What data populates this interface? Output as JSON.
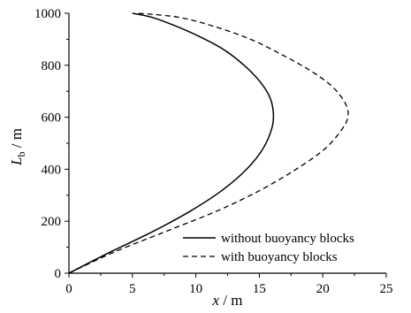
{
  "chart_data": {
    "type": "line",
    "xlabel": {
      "var": "x",
      "unit": " / m"
    },
    "ylabel": {
      "var": "L",
      "sub": "b",
      "unit": " / m"
    },
    "xlim": [
      0,
      25
    ],
    "ylim": [
      0,
      1000
    ],
    "x_ticks": [
      0,
      5,
      10,
      15,
      20,
      25
    ],
    "y_ticks": [
      0,
      200,
      400,
      600,
      800,
      1000
    ],
    "grid": false,
    "legend_position": "bottom-right",
    "series": [
      {
        "name": "without buoyancy blocks",
        "style": "solid",
        "color": "#000000",
        "points": [
          [
            0,
            0
          ],
          [
            3.2,
            80
          ],
          [
            6.6,
            160
          ],
          [
            9.6,
            240
          ],
          [
            12.1,
            320
          ],
          [
            14.0,
            400
          ],
          [
            15.3,
            480
          ],
          [
            16.0,
            560
          ],
          [
            16.1,
            620
          ],
          [
            15.8,
            680
          ],
          [
            15.0,
            740
          ],
          [
            13.8,
            800
          ],
          [
            12.2,
            860
          ],
          [
            10.3,
            910
          ],
          [
            8.2,
            955
          ],
          [
            6.5,
            985
          ],
          [
            5.0,
            1000
          ]
        ]
      },
      {
        "name": "with buoyancy blocks",
        "style": "dashed",
        "color": "#000000",
        "points": [
          [
            0,
            0
          ],
          [
            3.5,
            80
          ],
          [
            7.6,
            160
          ],
          [
            11.7,
            240
          ],
          [
            15.1,
            320
          ],
          [
            17.9,
            400
          ],
          [
            20.2,
            480
          ],
          [
            21.6,
            560
          ],
          [
            22.0,
            610
          ],
          [
            21.7,
            660
          ],
          [
            20.7,
            720
          ],
          [
            19.0,
            780
          ],
          [
            16.8,
            840
          ],
          [
            14.3,
            900
          ],
          [
            11.4,
            950
          ],
          [
            8.6,
            985
          ],
          [
            5.5,
            1000
          ]
        ]
      }
    ]
  }
}
